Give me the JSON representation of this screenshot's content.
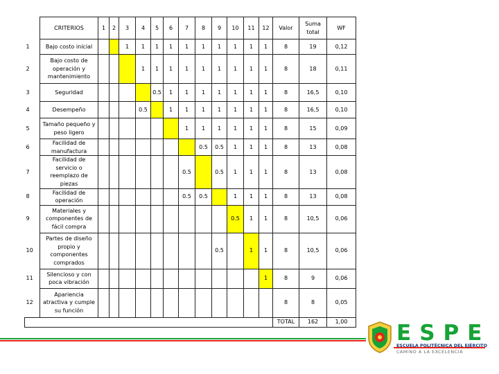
{
  "table": {
    "header": {
      "criteria": "CRITERIOS",
      "cols": [
        "1",
        "2",
        "3",
        "4",
        "5",
        "6",
        "7",
        "8",
        "9",
        "10",
        "11",
        "12"
      ],
      "valor": "Valor",
      "suma": "Suma total",
      "wf": "WF"
    },
    "rows": [
      {
        "n": "1",
        "criterio": "Bajo costo inicial",
        "cells": [
          "",
          "",
          "1",
          "1",
          "1",
          "1",
          "1",
          "1",
          "1",
          "1",
          "1",
          "1"
        ],
        "valor": "8",
        "suma": "19",
        "wf": "0,12"
      },
      {
        "n": "2",
        "criterio": "Bajo costo de operación y mantenimiento",
        "cells": [
          "",
          "",
          "",
          "1",
          "1",
          "1",
          "1",
          "1",
          "1",
          "1",
          "1",
          "1"
        ],
        "valor": "8",
        "suma": "18",
        "wf": "0,11"
      },
      {
        "n": "3",
        "criterio": "Seguridad",
        "cells": [
          "",
          "",
          "",
          "",
          "0.5",
          "1",
          "1",
          "1",
          "1",
          "1",
          "1",
          "1"
        ],
        "valor": "8",
        "suma": "16,5",
        "wf": "0,10"
      },
      {
        "n": "4",
        "criterio": "Desempeño",
        "cells": [
          "",
          "",
          "",
          "0.5",
          "",
          "1",
          "1",
          "1",
          "1",
          "1",
          "1",
          "1"
        ],
        "valor": "8",
        "suma": "16,5",
        "wf": "0,10"
      },
      {
        "n": "5",
        "criterio": "Tamaño pequeño y peso ligero",
        "cells": [
          "",
          "",
          "",
          "",
          "",
          "",
          "1",
          "1",
          "1",
          "1",
          "1",
          "1"
        ],
        "valor": "8",
        "suma": "15",
        "wf": "0,09"
      },
      {
        "n": "6",
        "criterio": "Facilidad de manufactura",
        "cells": [
          "",
          "",
          "",
          "",
          "",
          "",
          "",
          "0.5",
          "0.5",
          "1",
          "1",
          "1"
        ],
        "valor": "8",
        "suma": "13",
        "wf": "0,08"
      },
      {
        "n": "7",
        "criterio": "Facilidad de servicio o reemplazo de piezas",
        "cells": [
          "",
          "",
          "",
          "",
          "",
          "",
          "0.5",
          "",
          "0.5",
          "1",
          "1",
          "1"
        ],
        "valor": "8",
        "suma": "13",
        "wf": "0,08"
      },
      {
        "n": "8",
        "criterio": "Facilidad de operación",
        "cells": [
          "",
          "",
          "",
          "",
          "",
          "",
          "0.5",
          "0.5",
          "",
          "1",
          "1",
          "1"
        ],
        "valor": "8",
        "suma": "13",
        "wf": "0,08"
      },
      {
        "n": "9",
        "criterio": "Materiales y componentes de fácil compra",
        "cells": [
          "",
          "",
          "",
          "",
          "",
          "",
          "",
          "",
          "",
          "0.5",
          "1",
          "1"
        ],
        "valor": "8",
        "suma": "10,5",
        "wf": "0,06"
      },
      {
        "n": "10",
        "criterio": "Partes de diseño propio y componentes comprados",
        "cells": [
          "",
          "",
          "",
          "",
          "",
          "",
          "",
          "",
          "0.5",
          "",
          "1",
          "1"
        ],
        "valor": "8",
        "suma": "10,5",
        "wf": "0,06"
      },
      {
        "n": "11",
        "criterio": "Silencioso y con poca vibración",
        "cells": [
          "",
          "",
          "",
          "",
          "",
          "",
          "",
          "",
          "",
          "",
          "",
          "1"
        ],
        "valor": "8",
        "suma": "9",
        "wf": "0,06"
      },
      {
        "n": "12",
        "criterio": "Apariencia atractiva y cumple su función",
        "cells": [
          "",
          "",
          "",
          "",
          "",
          "",
          "",
          "",
          "",
          "",
          "",
          ""
        ],
        "valor": "8",
        "suma": "8",
        "wf": "0,05"
      }
    ],
    "diagonal_col_index": [
      1,
      2,
      3,
      4,
      5,
      6,
      7,
      8,
      9,
      10,
      11,
      12
    ],
    "total": {
      "label": "TOTAL",
      "suma": "162",
      "wf": "1,00"
    }
  },
  "logo": {
    "letters": [
      "E",
      "S",
      "P",
      "E"
    ],
    "line1": "ESCUELA POLITÉCNICA DEL EJÉRCITO",
    "line2": "CAMINO A LA EXCELENCIA",
    "colors": {
      "green": "#17a336",
      "red": "#e8251b",
      "blue": "#1a3a7a",
      "highlight": "#ffff00"
    }
  }
}
